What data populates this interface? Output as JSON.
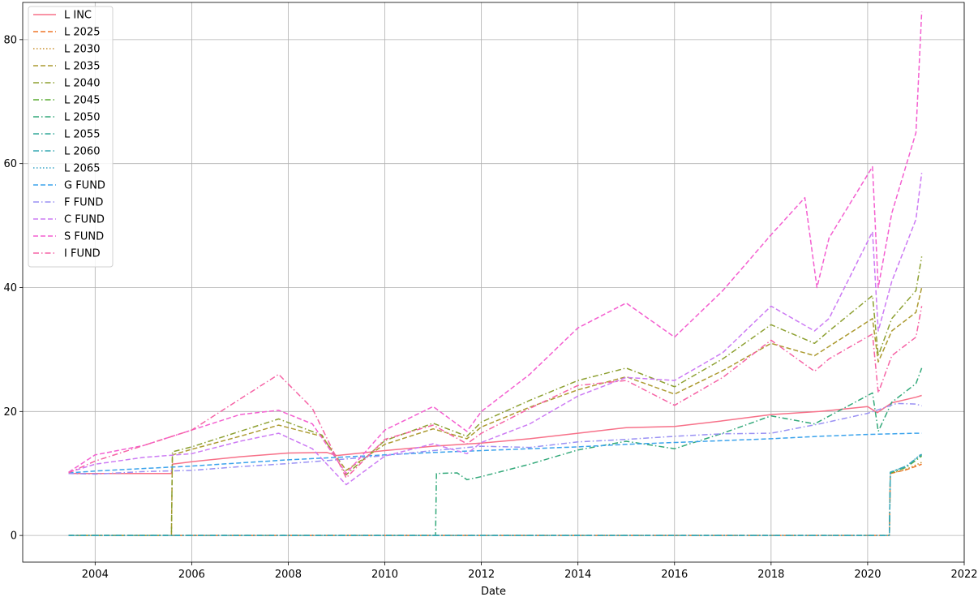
{
  "chart_data": {
    "type": "line",
    "title": "",
    "xlabel": "Date",
    "ylabel": "",
    "xlim": [
      2002.5,
      2022.0
    ],
    "ylim": [
      -4.3,
      86.0
    ],
    "x_ticks": [
      2004,
      2006,
      2008,
      2010,
      2012,
      2014,
      2016,
      2018,
      2020,
      2022
    ],
    "y_ticks": [
      0,
      20,
      40,
      60,
      80
    ],
    "grid": true,
    "legend_position": "upper-left",
    "series": [
      {
        "name": "L INC",
        "color": "#f77189",
        "dash": "solid",
        "points": [
          [
            2003.45,
            10.0
          ],
          [
            2005.58,
            10.0
          ],
          [
            2005.6,
            11.5
          ],
          [
            2006,
            11.9
          ],
          [
            2007,
            12.7
          ],
          [
            2008,
            13.3
          ],
          [
            2008.8,
            13.4
          ],
          [
            2009,
            12.9
          ],
          [
            2010,
            13.7
          ],
          [
            2011,
            14.4
          ],
          [
            2012,
            14.9
          ],
          [
            2013,
            15.6
          ],
          [
            2014,
            16.5
          ],
          [
            2015,
            17.4
          ],
          [
            2016,
            17.6
          ],
          [
            2017,
            18.5
          ],
          [
            2018,
            19.5
          ],
          [
            2019,
            20.0
          ],
          [
            2020,
            20.8
          ],
          [
            2020.2,
            19.8
          ],
          [
            2020.5,
            21.4
          ],
          [
            2021,
            22.3
          ],
          [
            2021.12,
            22.6
          ]
        ]
      },
      {
        "name": "L 2025",
        "color": "#ef7628",
        "dash": "dashed",
        "points": [
          [
            2003.45,
            0
          ],
          [
            2020.45,
            0
          ],
          [
            2020.47,
            10.0
          ],
          [
            2020.8,
            10.6
          ],
          [
            2021.12,
            11.5
          ]
        ]
      },
      {
        "name": "L 2030",
        "color": "#c98f2c",
        "dash": "dotted",
        "points": [
          [
            2003.45,
            0
          ],
          [
            2020.45,
            0
          ],
          [
            2020.47,
            10.0
          ],
          [
            2020.8,
            10.7
          ],
          [
            2021.12,
            11.8
          ]
        ]
      },
      {
        "name": "L 2035",
        "color": "#ac9a30",
        "dash": "dashed",
        "points": [
          [
            2003.45,
            0
          ],
          [
            2005.58,
            0
          ],
          [
            2005.6,
            13.0
          ],
          [
            2006,
            13.9
          ],
          [
            2007,
            16.0
          ],
          [
            2007.8,
            17.8
          ],
          [
            2008.7,
            16.0
          ],
          [
            2009.2,
            10.5
          ],
          [
            2010,
            14.7
          ],
          [
            2011,
            17.2
          ],
          [
            2011.7,
            15.6
          ],
          [
            2012,
            17.5
          ],
          [
            2013,
            20.7
          ],
          [
            2014,
            23.5
          ],
          [
            2015,
            25.6
          ],
          [
            2016,
            22.8
          ],
          [
            2017,
            26.6
          ],
          [
            2018,
            31.0
          ],
          [
            2018.9,
            29.0
          ],
          [
            2019.2,
            30.5
          ],
          [
            2020.1,
            35.0
          ],
          [
            2020.22,
            28.0
          ],
          [
            2020.5,
            33.0
          ],
          [
            2021,
            36.0
          ],
          [
            2021.12,
            40.0
          ]
        ]
      },
      {
        "name": "L 2040",
        "color": "#8da031",
        "dash": "dashdot",
        "points": [
          [
            2003.45,
            0
          ],
          [
            2005.58,
            0
          ],
          [
            2005.6,
            13.5
          ],
          [
            2006,
            14.3
          ],
          [
            2007,
            16.8
          ],
          [
            2007.8,
            18.8
          ],
          [
            2008.7,
            16.2
          ],
          [
            2009.2,
            9.8
          ],
          [
            2010,
            15.3
          ],
          [
            2011,
            18.1
          ],
          [
            2011.7,
            16.0
          ],
          [
            2012,
            18.3
          ],
          [
            2013,
            21.8
          ],
          [
            2014,
            25.0
          ],
          [
            2015,
            27.0
          ],
          [
            2016,
            24.0
          ],
          [
            2017,
            28.5
          ],
          [
            2018,
            34.0
          ],
          [
            2018.9,
            31.0
          ],
          [
            2019.2,
            33.0
          ],
          [
            2020.1,
            38.7
          ],
          [
            2020.22,
            29.0
          ],
          [
            2020.5,
            35.0
          ],
          [
            2021,
            39.5
          ],
          [
            2021.12,
            45.0
          ]
        ]
      },
      {
        "name": "L 2045",
        "color": "#58ab31",
        "dash": "dashdot",
        "points": [
          [
            2003.45,
            0
          ],
          [
            2020.45,
            0
          ],
          [
            2020.47,
            10.1
          ],
          [
            2020.8,
            11.0
          ],
          [
            2021.12,
            12.8
          ]
        ]
      },
      {
        "name": "L 2050",
        "color": "#33a97a",
        "dash": "dashdot",
        "points": [
          [
            2003.45,
            0
          ],
          [
            2011.05,
            0
          ],
          [
            2011.07,
            10.0
          ],
          [
            2011.5,
            10.1
          ],
          [
            2011.7,
            9.0
          ],
          [
            2012,
            9.5
          ],
          [
            2013,
            11.5
          ],
          [
            2014,
            13.8
          ],
          [
            2015,
            15.2
          ],
          [
            2016,
            14.0
          ],
          [
            2017,
            16.5
          ],
          [
            2018,
            19.3
          ],
          [
            2018.9,
            18.0
          ],
          [
            2019.5,
            20.5
          ],
          [
            2020.1,
            23.0
          ],
          [
            2020.22,
            16.8
          ],
          [
            2020.5,
            21.5
          ],
          [
            2021,
            24.5
          ],
          [
            2021.12,
            27.0
          ]
        ]
      },
      {
        "name": "L 2055",
        "color": "#35a99a",
        "dash": "dashdot",
        "points": [
          [
            2003.45,
            0
          ],
          [
            2020.45,
            0
          ],
          [
            2020.47,
            10.2
          ],
          [
            2020.8,
            11.1
          ],
          [
            2021.12,
            13.0
          ]
        ]
      },
      {
        "name": "L 2060",
        "color": "#37a8b3",
        "dash": "dashdot",
        "points": [
          [
            2003.45,
            0
          ],
          [
            2020.45,
            0
          ],
          [
            2020.47,
            10.2
          ],
          [
            2020.8,
            11.2
          ],
          [
            2021.12,
            13.1
          ]
        ]
      },
      {
        "name": "L 2065",
        "color": "#3aa5c8",
        "dash": "dotted",
        "points": [
          [
            2003.45,
            0
          ],
          [
            2020.45,
            0
          ],
          [
            2020.47,
            10.2
          ],
          [
            2020.8,
            11.2
          ],
          [
            2021.12,
            13.2
          ]
        ]
      },
      {
        "name": "G FUND",
        "color": "#3ba3ec",
        "dash": "dashed",
        "points": [
          [
            2003.45,
            10.1
          ],
          [
            2004,
            10.4
          ],
          [
            2005,
            10.8
          ],
          [
            2006,
            11.2
          ],
          [
            2007,
            11.7
          ],
          [
            2008,
            12.2
          ],
          [
            2009,
            12.6
          ],
          [
            2010,
            13.0
          ],
          [
            2011,
            13.4
          ],
          [
            2012,
            13.7
          ],
          [
            2013,
            14.0
          ],
          [
            2014,
            14.3
          ],
          [
            2015,
            14.7
          ],
          [
            2016,
            15.0
          ],
          [
            2017,
            15.3
          ],
          [
            2018,
            15.6
          ],
          [
            2019,
            16.0
          ],
          [
            2020,
            16.3
          ],
          [
            2021,
            16.5
          ],
          [
            2021.12,
            16.5
          ]
        ]
      },
      {
        "name": "F FUND",
        "color": "#9a91f4",
        "dash": "dashdot",
        "points": [
          [
            2003.45,
            10.0
          ],
          [
            2004,
            9.9
          ],
          [
            2005,
            10.3
          ],
          [
            2006,
            10.5
          ],
          [
            2007,
            11.1
          ],
          [
            2008,
            11.6
          ],
          [
            2009,
            12.2
          ],
          [
            2010,
            12.9
          ],
          [
            2011,
            13.7
          ],
          [
            2012,
            14.4
          ],
          [
            2013,
            14.2
          ],
          [
            2014,
            15.1
          ],
          [
            2015,
            15.5
          ],
          [
            2016,
            16.0
          ],
          [
            2017,
            16.4
          ],
          [
            2018,
            16.5
          ],
          [
            2019,
            18.0
          ],
          [
            2020,
            19.7
          ],
          [
            2020.6,
            21.3
          ],
          [
            2021,
            21.2
          ],
          [
            2021.12,
            20.9
          ]
        ]
      },
      {
        "name": "C FUND",
        "color": "#cc7af4",
        "dash": "dashed",
        "points": [
          [
            2003.45,
            10.2
          ],
          [
            2004,
            11.5
          ],
          [
            2005,
            12.6
          ],
          [
            2006,
            13.2
          ],
          [
            2007,
            15.2
          ],
          [
            2007.8,
            16.5
          ],
          [
            2008.5,
            14.0
          ],
          [
            2009.2,
            8.2
          ],
          [
            2010,
            12.8
          ],
          [
            2011,
            14.8
          ],
          [
            2011.7,
            13.2
          ],
          [
            2012,
            15.0
          ],
          [
            2013,
            18.0
          ],
          [
            2014,
            22.5
          ],
          [
            2015,
            25.5
          ],
          [
            2016,
            25.0
          ],
          [
            2017,
            29.5
          ],
          [
            2018,
            37.0
          ],
          [
            2018.9,
            33.0
          ],
          [
            2019.2,
            35.0
          ],
          [
            2020.1,
            49.0
          ],
          [
            2020.22,
            33.0
          ],
          [
            2020.5,
            41.0
          ],
          [
            2021,
            51.0
          ],
          [
            2021.12,
            58.5
          ]
        ]
      },
      {
        "name": "S FUND",
        "color": "#f45fd0",
        "dash": "dashed",
        "points": [
          [
            2003.45,
            10.2
          ],
          [
            2004,
            13.0
          ],
          [
            2005,
            14.5
          ],
          [
            2006,
            17.0
          ],
          [
            2007,
            19.5
          ],
          [
            2007.8,
            20.2
          ],
          [
            2008.5,
            18.0
          ],
          [
            2009.2,
            10.0
          ],
          [
            2010,
            17.0
          ],
          [
            2011,
            20.8
          ],
          [
            2011.7,
            16.8
          ],
          [
            2012,
            20.0
          ],
          [
            2013,
            26.0
          ],
          [
            2014,
            33.5
          ],
          [
            2015,
            37.5
          ],
          [
            2016,
            32.0
          ],
          [
            2017,
            39.5
          ],
          [
            2018,
            48.5
          ],
          [
            2018.7,
            54.5
          ],
          [
            2018.95,
            40.0
          ],
          [
            2019.2,
            48.0
          ],
          [
            2020.1,
            59.5
          ],
          [
            2020.22,
            40.0
          ],
          [
            2020.5,
            52.0
          ],
          [
            2021,
            65.0
          ],
          [
            2021.12,
            84.5
          ]
        ]
      },
      {
        "name": "I FUND",
        "color": "#f663a5",
        "dash": "dashdot",
        "points": [
          [
            2003.45,
            10.1
          ],
          [
            2004,
            12.0
          ],
          [
            2005,
            14.5
          ],
          [
            2006,
            17.0
          ],
          [
            2007,
            22.0
          ],
          [
            2007.8,
            26.0
          ],
          [
            2008.5,
            20.5
          ],
          [
            2009.2,
            9.3
          ],
          [
            2010,
            15.5
          ],
          [
            2011,
            17.8
          ],
          [
            2011.7,
            14.8
          ],
          [
            2012,
            16.5
          ],
          [
            2013,
            20.5
          ],
          [
            2014,
            24.2
          ],
          [
            2015,
            25.0
          ],
          [
            2016,
            21.0
          ],
          [
            2017,
            25.5
          ],
          [
            2018,
            31.5
          ],
          [
            2018.9,
            26.5
          ],
          [
            2019.2,
            28.5
          ],
          [
            2020.1,
            32.5
          ],
          [
            2020.22,
            23.0
          ],
          [
            2020.5,
            29.0
          ],
          [
            2021,
            32.0
          ],
          [
            2021.12,
            37.0
          ]
        ]
      }
    ]
  }
}
